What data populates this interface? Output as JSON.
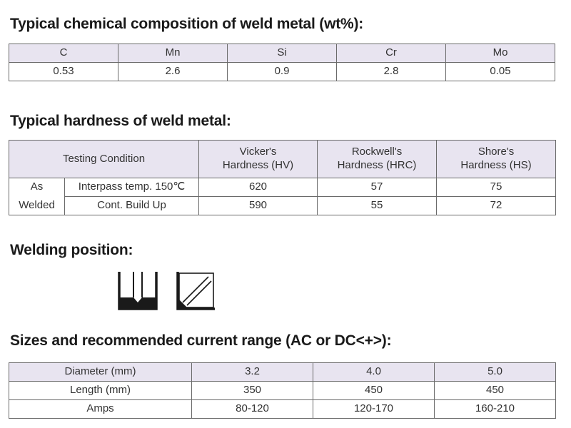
{
  "composition": {
    "title": "Typical chemical composition of weld metal (wt%):",
    "headers": [
      "C",
      "Mn",
      "Si",
      "Cr",
      "Mo"
    ],
    "values": [
      "0.53",
      "2.6",
      "0.9",
      "2.8",
      "0.05"
    ]
  },
  "hardness": {
    "title": "Typical hardness of weld metal:",
    "condition_header": "Testing Condition",
    "hv_header_1": "Vicker's",
    "hv_header_2": "Hardness (HV)",
    "hrc_header_1": "Rockwell's",
    "hrc_header_2": "Hardness (HRC)",
    "hs_header_1": "Shore's",
    "hs_header_2": "Hardness (HS)",
    "as_label": "As",
    "welded_label": "Welded",
    "rows": [
      {
        "condition": "Interpass temp. 150℃",
        "hv": "620",
        "hrc": "57",
        "hs": "75"
      },
      {
        "condition": "Cont. Build Up",
        "hv": "590",
        "hrc": "55",
        "hs": "72"
      }
    ]
  },
  "welding_position": {
    "title": "Welding position:",
    "icons": [
      "flat-position-icon",
      "horizontal-position-icon"
    ]
  },
  "sizes": {
    "title": "Sizes and recommended current range (AC or DC<+>):",
    "rows": [
      {
        "label": "Diameter (mm)",
        "values": [
          "3.2",
          "4.0",
          "5.0"
        ]
      },
      {
        "label": "Length (mm)",
        "values": [
          "350",
          "450",
          "450"
        ]
      },
      {
        "label": "Amps",
        "values": [
          "80-120",
          "120-170",
          "160-210"
        ]
      }
    ]
  },
  "colors": {
    "header_fill": "#e8e4f0",
    "border": "#6a6a6a",
    "icon": "#1a1a1a"
  }
}
